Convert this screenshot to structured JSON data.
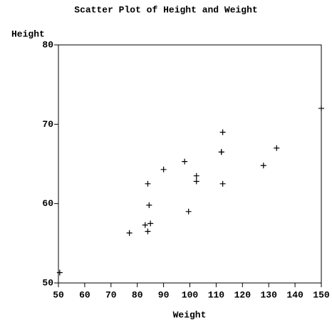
{
  "chart_data": {
    "type": "scatter",
    "title": "Scatter Plot of Height and Weight",
    "x_label": "Weight",
    "y_label": "Height",
    "x": [
      112.5,
      84.0,
      98.0,
      102.5,
      102.5,
      83.0,
      84.5,
      112.5,
      84.0,
      99.5,
      50.5,
      90.0,
      77.0,
      112.0,
      150.0,
      128.0,
      133.0,
      85.0,
      112.0
    ],
    "series": [
      {
        "name": "Height",
        "color": "#000000",
        "values": [
          69.0,
          56.5,
          65.3,
          62.8,
          63.5,
          57.3,
          59.8,
          62.5,
          62.5,
          59.0,
          51.3,
          64.3,
          56.3,
          66.5,
          72.0,
          64.8,
          67.0,
          57.5,
          66.5
        ]
      }
    ],
    "xlim": [
      50,
      150
    ],
    "xticks": [
      50,
      60,
      70,
      80,
      90,
      100,
      110,
      120,
      130,
      140,
      150
    ],
    "ylim": [
      50,
      80
    ],
    "yticks": [
      50,
      60,
      70,
      80
    ],
    "grid": false
  }
}
